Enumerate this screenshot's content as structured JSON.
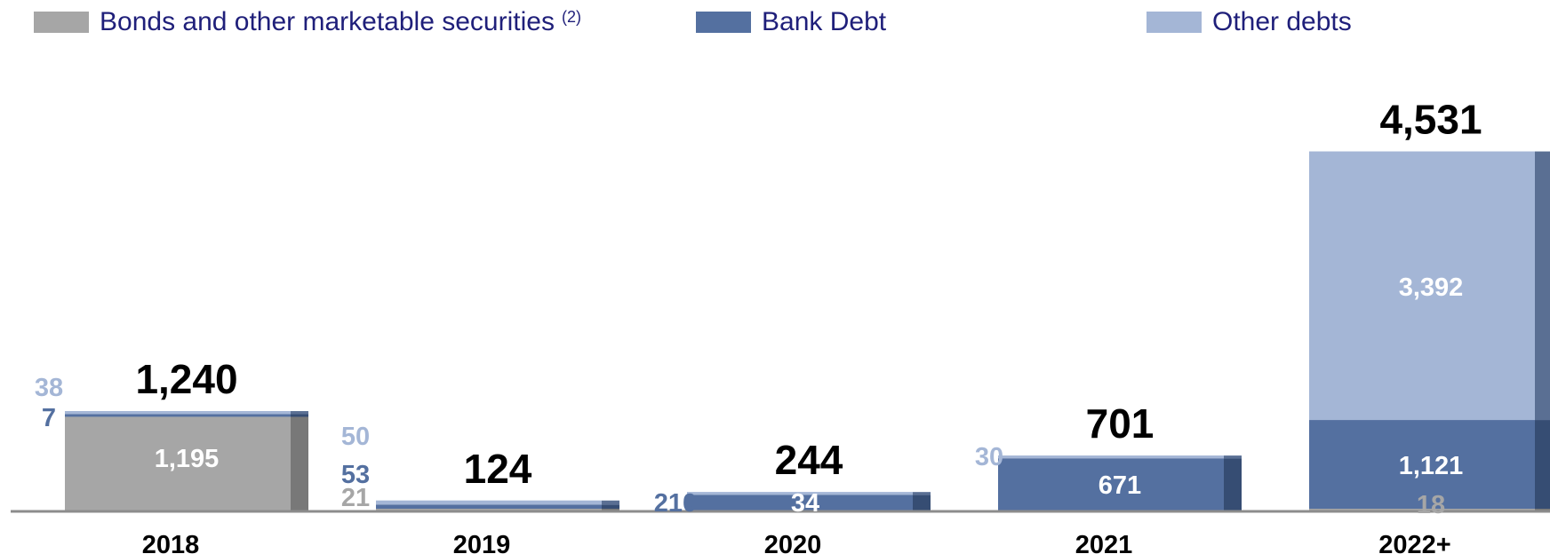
{
  "legend": {
    "bonds": {
      "label": "Bonds and other marketable securities",
      "note": "(2)",
      "color": "#a6a6a6"
    },
    "bank": {
      "label": "Bank Debt",
      "color": "#5470a0"
    },
    "other": {
      "label": "Other debts",
      "color": "#a4b6d6"
    }
  },
  "chart_data": {
    "type": "bar",
    "stacked": true,
    "categories": [
      "2018",
      "2019",
      "2020",
      "2021",
      "2022+"
    ],
    "series": [
      {
        "name": "Bonds and other marketable securities",
        "values": [
          1195,
          21,
          0,
          0,
          18
        ],
        "color": "#a6a6a6"
      },
      {
        "name": "Bank Debt",
        "values": [
          7,
          53,
          210,
          671,
          1121
        ],
        "color": "#5470a0"
      },
      {
        "name": "Other debts",
        "values": [
          38,
          50,
          34,
          30,
          3392
        ],
        "color": "#a4b6d6"
      }
    ],
    "totals": [
      1240,
      124,
      244,
      701,
      4531
    ],
    "data_labels": [
      {
        "category": "2018",
        "bonds": "1,195",
        "bank": "7",
        "other": "38",
        "total": "1,240"
      },
      {
        "category": "2019",
        "bonds": "21",
        "bank": "53",
        "other": "50",
        "total": "124"
      },
      {
        "category": "2020",
        "bonds": "",
        "bank": "210",
        "other": "34",
        "total": "244"
      },
      {
        "category": "2021",
        "bonds": "",
        "bank": "671",
        "other": "30",
        "total": "701"
      },
      {
        "category": "2022+",
        "bonds": "18",
        "bank": "1,121",
        "other": "3,392",
        "total": "4,531"
      }
    ],
    "ylim": [
      0,
      4531
    ],
    "grid": false,
    "legend_position": "top"
  }
}
